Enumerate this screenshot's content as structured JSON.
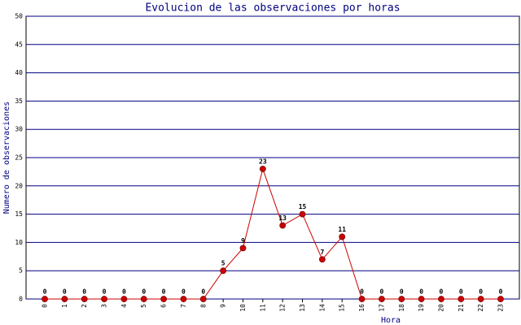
{
  "chart_data": {
    "type": "line",
    "title": "Evolucion de las observaciones por horas",
    "x_label": "Hora",
    "y_label": "Numero de observaciones",
    "categories": [
      "0",
      "1",
      "2",
      "3",
      "4",
      "5",
      "6",
      "7",
      "8",
      "9",
      "10",
      "11",
      "12",
      "13",
      "14",
      "15",
      "16",
      "17",
      "18",
      "19",
      "20",
      "21",
      "22",
      "23"
    ],
    "values": [
      0,
      0,
      0,
      0,
      0,
      0,
      0,
      0,
      0,
      5,
      9,
      23,
      13,
      15,
      7,
      11,
      0,
      0,
      0,
      0,
      0,
      0,
      0,
      0
    ],
    "color": "#cc0000",
    "ylim": [
      0,
      50
    ],
    "yticks": [
      0,
      5,
      10,
      15,
      20,
      25,
      30,
      35,
      40,
      45,
      50
    ],
    "grid": true
  }
}
